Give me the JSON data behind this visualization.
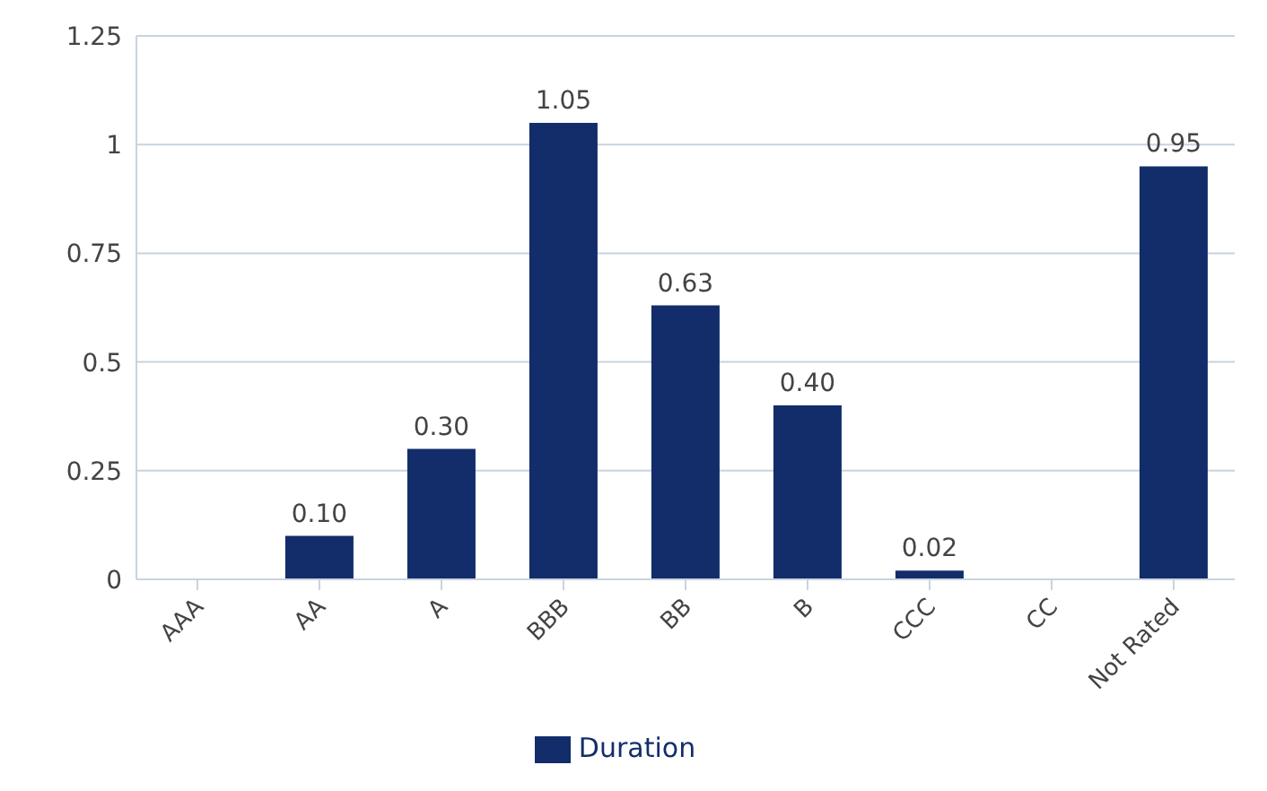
{
  "chart_data": {
    "type": "bar",
    "categories": [
      "AAA",
      "AA",
      "A",
      "BBB",
      "BB",
      "B",
      "CCC",
      "CC",
      "Not Rated"
    ],
    "series": [
      {
        "name": "Duration",
        "color": "#132d6b",
        "values": [
          null,
          0.1,
          0.3,
          1.05,
          0.63,
          0.4,
          0.02,
          null,
          0.95
        ],
        "value_labels": [
          null,
          "0.10",
          "0.30",
          "1.05",
          "0.63",
          "0.40",
          "0.02",
          null,
          "0.95"
        ]
      }
    ],
    "ylim": [
      0,
      1.25
    ],
    "yticks": [
      0,
      0.25,
      0.5,
      0.75,
      1,
      1.25
    ],
    "grid": "y",
    "legend": "bottom"
  }
}
